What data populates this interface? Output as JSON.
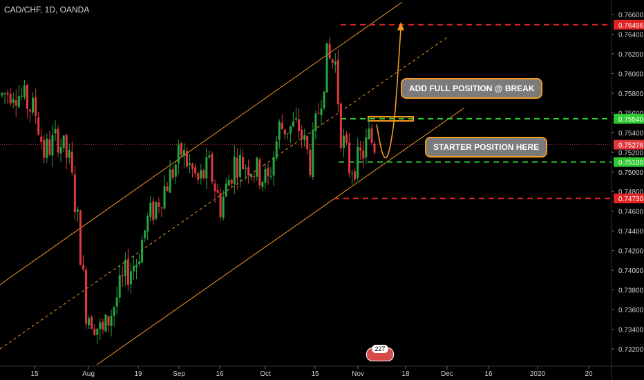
{
  "symbol_label": "CAD/CHF, 1D, OANDA",
  "colors": {
    "background": "#000000",
    "up_candle": "#26a641",
    "down_candle": "#e0383e",
    "channel": "#f39b23",
    "green_level": "#2ec92e",
    "red_level": "#e02424",
    "axis_text": "#cfcfcf"
  },
  "chart_data": {
    "type": "candlestick",
    "title": "CAD/CHF, 1D, OANDA",
    "xlabel": "",
    "ylabel": "",
    "ylim": [
      0.7313,
      0.7666
    ],
    "y_ticks": [
      "0.76600",
      "0.76400",
      "0.76200",
      "0.76000",
      "0.75800",
      "0.75600",
      "0.75400",
      "0.75200",
      "0.75000",
      "0.74800",
      "0.74600",
      "0.74400",
      "0.74200",
      "0.74000",
      "0.73800",
      "0.73600",
      "0.73400",
      "0.73200"
    ],
    "x_ticks": [
      "15",
      "Aug",
      "19",
      "Sep",
      "16",
      "Oct",
      "15",
      "Nov",
      "18",
      "Dec",
      "16",
      "2020",
      "20"
    ],
    "price_labels": [
      {
        "value": "0.76496",
        "color": "#e02424"
      },
      {
        "value": "0.75540",
        "color": "#2ec92e"
      },
      {
        "value": "0.75276",
        "color": "#e0383e"
      },
      {
        "value": "0.75100",
        "color": "#2ec92e"
      },
      {
        "value": "0.74730",
        "color": "#e02424"
      }
    ],
    "levels": [
      {
        "value": 0.76496,
        "color": "#e02424",
        "style": "dashed"
      },
      {
        "value": 0.7554,
        "color": "#2ec92e",
        "style": "dashed"
      },
      {
        "value": 0.751,
        "color": "#2ec92e",
        "style": "dashed"
      },
      {
        "value": 0.7473,
        "color": "#e02424",
        "style": "dashed"
      },
      {
        "value": 0.75276,
        "color": "#e0383e",
        "style": "dotted"
      }
    ],
    "annotations": [
      "ADD FULL POSITION @ BREAK",
      "STARTER POSITION HERE"
    ],
    "badge": "227",
    "grid": true
  }
}
